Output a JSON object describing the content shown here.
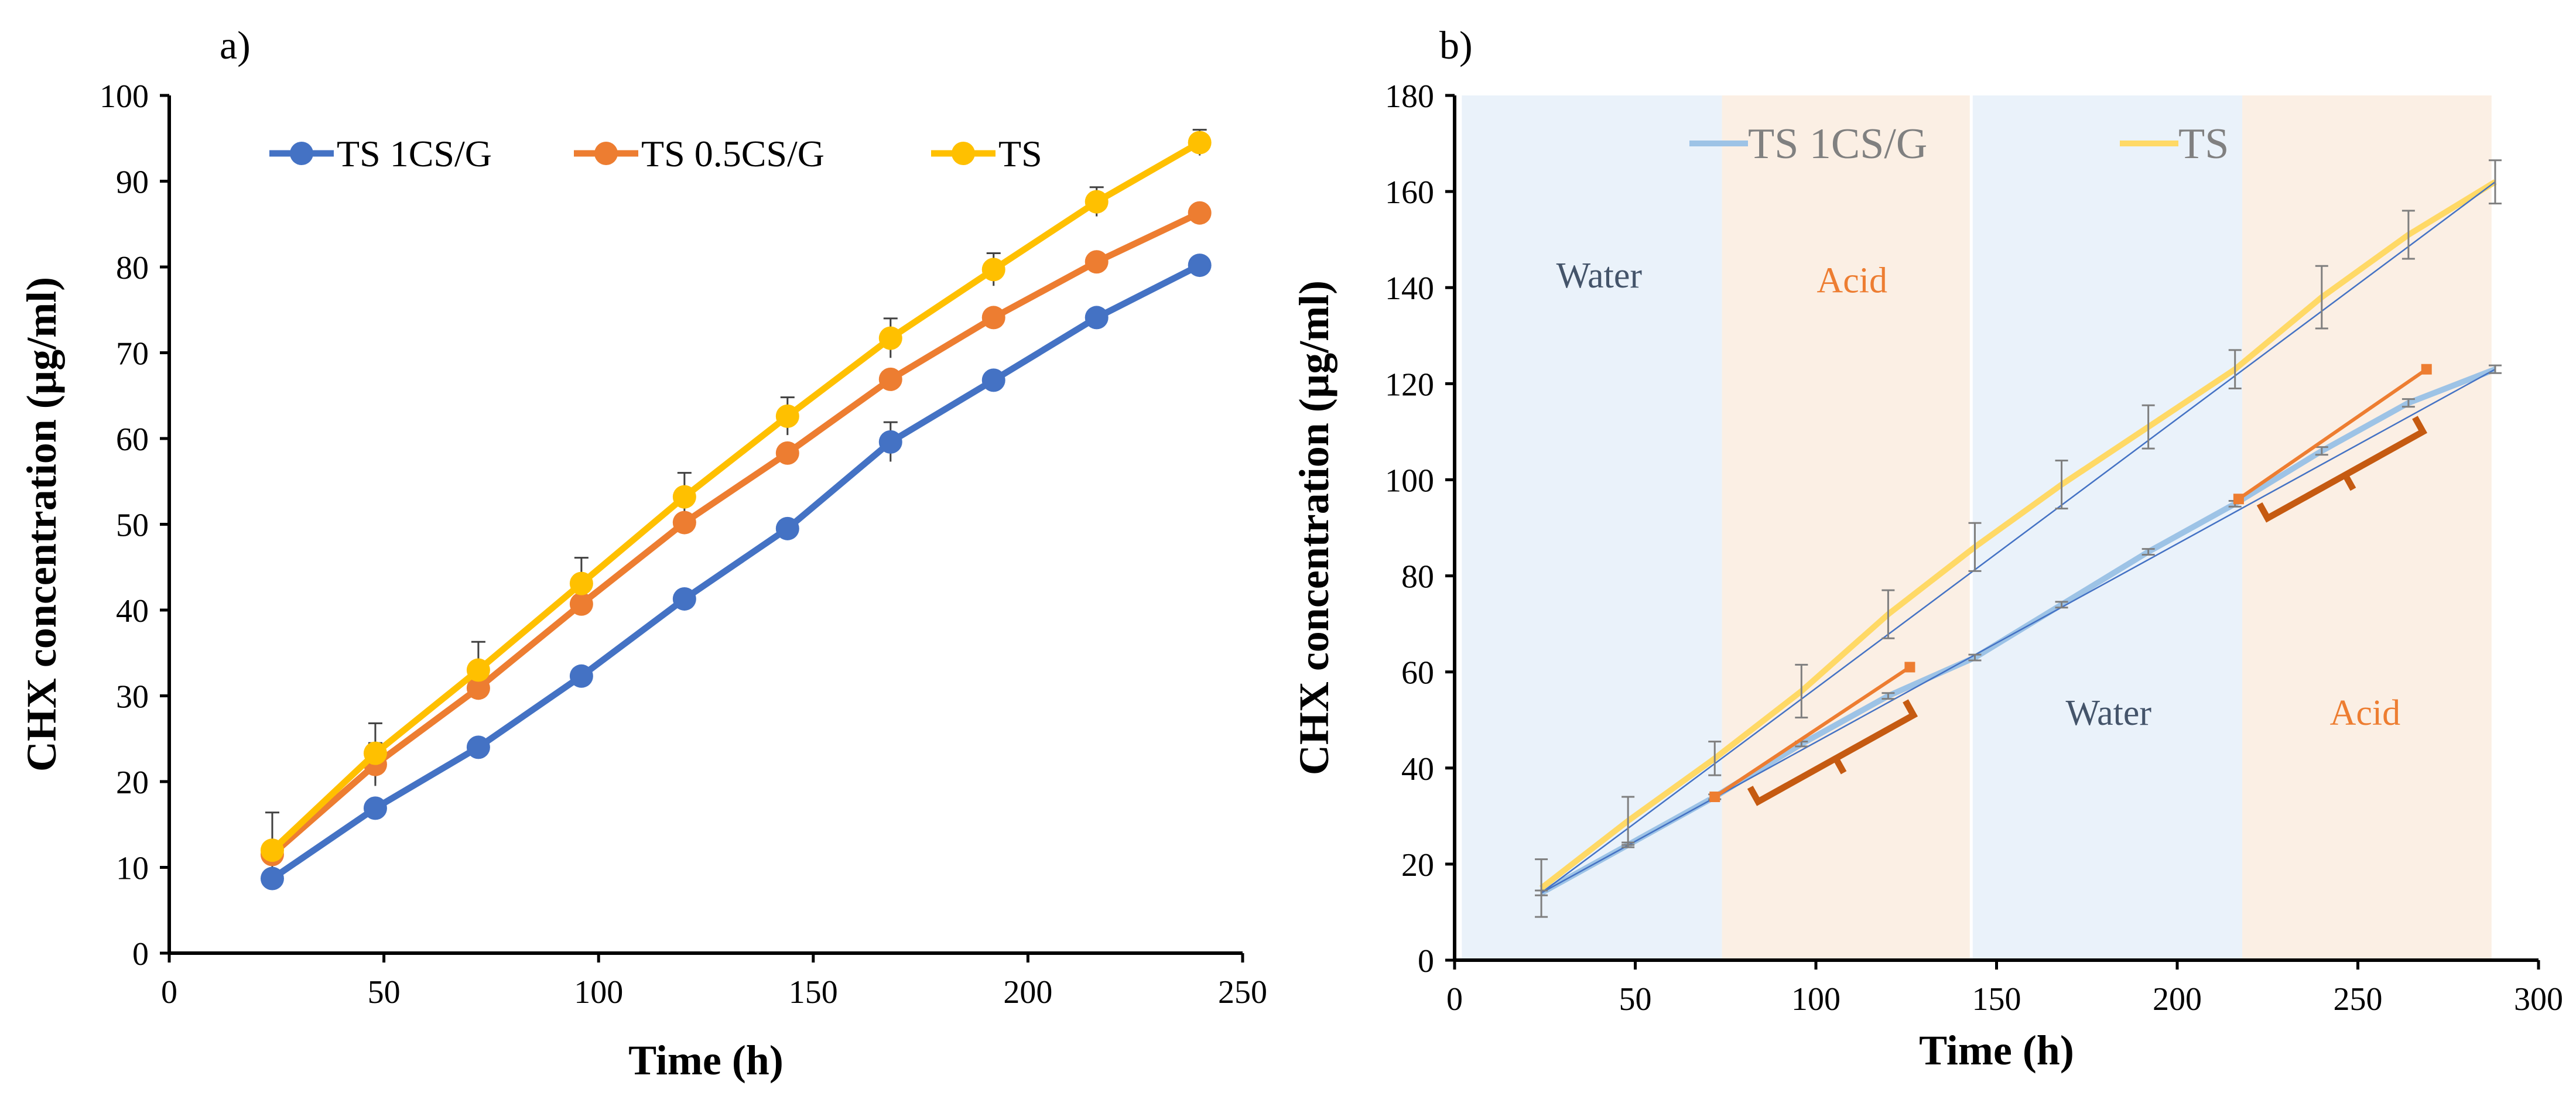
{
  "chart_data": [
    {
      "panel_label": "a)",
      "type": "line",
      "xlabel": "Time (h)",
      "ylabel": "CHX concentration  (µg/ml)",
      "xlim": [
        0,
        250
      ],
      "ylim": [
        0,
        100
      ],
      "xticks": [
        0,
        50,
        100,
        150,
        200,
        250
      ],
      "yticks": [
        0,
        10,
        20,
        30,
        40,
        50,
        60,
        70,
        80,
        90,
        100
      ],
      "grid": false,
      "legend": "top-left",
      "x": [
        24,
        48,
        72,
        96,
        120,
        144,
        168,
        192,
        216,
        240
      ],
      "series": [
        {
          "name": "TS 1CS/G",
          "color": "#4472C4",
          "values": [
            8.7,
            16.9,
            24.0,
            32.3,
            41.3,
            49.5,
            59.6,
            66.8,
            74.1,
            80.2
          ],
          "errors": [
            0.3,
            0.4,
            0.4,
            0.4,
            0.4,
            0.4,
            2.3,
            0.4,
            0.4,
            0.4
          ]
        },
        {
          "name": "TS 0.5CS/G",
          "color": "#ED7D31",
          "values": [
            11.5,
            22.0,
            30.9,
            40.7,
            50.2,
            58.3,
            66.9,
            74.1,
            80.6,
            86.3
          ],
          "errors": [
            0.4,
            2.5,
            0.6,
            0.6,
            0.6,
            0.6,
            0.6,
            0.6,
            0.6,
            0.6
          ]
        },
        {
          "name": "TS",
          "color": "#FFC000",
          "values": [
            12.0,
            23.3,
            33.0,
            43.1,
            53.2,
            62.6,
            71.7,
            79.7,
            87.6,
            94.5
          ],
          "errors": [
            4.4,
            3.5,
            3.3,
            3.0,
            2.8,
            2.2,
            2.3,
            1.9,
            1.7,
            1.5
          ]
        }
      ]
    },
    {
      "panel_label": "b)",
      "type": "line",
      "xlabel": "Time (h)",
      "ylabel": "CHX concentration  (µg/ml)",
      "xlim": [
        0,
        300
      ],
      "ylim": [
        0,
        180
      ],
      "xticks": [
        0,
        50,
        100,
        150,
        200,
        250,
        300
      ],
      "yticks": [
        0,
        20,
        40,
        60,
        80,
        100,
        120,
        140,
        160,
        180
      ],
      "grid": false,
      "legend": "top",
      "regions": [
        {
          "label": "Water",
          "x_start": 2,
          "x_end": 74,
          "color": "#EAF2FA",
          "text_color": "#44546A",
          "label_x": 40,
          "label_y": 140
        },
        {
          "label": "Acid",
          "x_start": 74,
          "x_end": 143,
          "color": "#FBEFE4",
          "text_color": "#ED7D31",
          "label_x": 110,
          "label_y": 139
        },
        {
          "label": "Water",
          "x_start": 143,
          "x_end": 218,
          "color": "#EAF2FA",
          "text_color": "#44546A",
          "label_x": 181,
          "label_y": 49
        },
        {
          "label": "Acid",
          "x_start": 218,
          "x_end": 287,
          "color": "#FBEFE4",
          "text_color": "#ED7D31",
          "label_x": 252,
          "label_y": 49
        }
      ],
      "x": [
        24,
        48,
        72,
        96,
        120,
        144,
        168,
        192,
        216,
        240,
        264,
        288
      ],
      "series": [
        {
          "name": "TS 1CS/G",
          "color": "#9DC3E6",
          "values": [
            14.0,
            24.0,
            34.0,
            45.0,
            55.0,
            63.0,
            74.0,
            85.0,
            95.0,
            106.0,
            116.0,
            123.0
          ],
          "errors": [
            0.5,
            0.5,
            0.5,
            0.5,
            0.6,
            0.6,
            0.6,
            0.6,
            0.6,
            0.8,
            0.8,
            0.8
          ]
        },
        {
          "name": "TS",
          "color": "#FFD966",
          "values": [
            15.0,
            29.0,
            42.0,
            56.0,
            72.0,
            86.0,
            99.0,
            111.0,
            123.0,
            138.0,
            151.0,
            162.0
          ],
          "errors": [
            6.0,
            5.0,
            3.5,
            5.5,
            5.0,
            5.0,
            5.0,
            4.5,
            4.0,
            6.5,
            5.0,
            4.5
          ]
        }
      ],
      "trendlines": [
        {
          "color": "#4472C4",
          "x": [
            24,
            288
          ],
          "y": [
            14,
            123
          ]
        },
        {
          "color": "#4472C4",
          "x": [
            24,
            288
          ],
          "y": [
            14,
            162
          ]
        }
      ],
      "annotations": [
        {
          "type": "arrow",
          "color": "#ED7D31",
          "x": [
            72,
            126
          ],
          "y": [
            34,
            61
          ]
        },
        {
          "type": "arrow",
          "color": "#ED7D31",
          "x": [
            217,
            269
          ],
          "y": [
            96,
            123
          ]
        },
        {
          "type": "bracket",
          "color": "#C55A11",
          "x": [
            84,
            127
          ],
          "y": [
            33,
            51
          ]
        },
        {
          "type": "bracket",
          "color": "#C55A11",
          "x": [
            225,
            268
          ],
          "y": [
            92,
            110
          ]
        }
      ]
    }
  ]
}
